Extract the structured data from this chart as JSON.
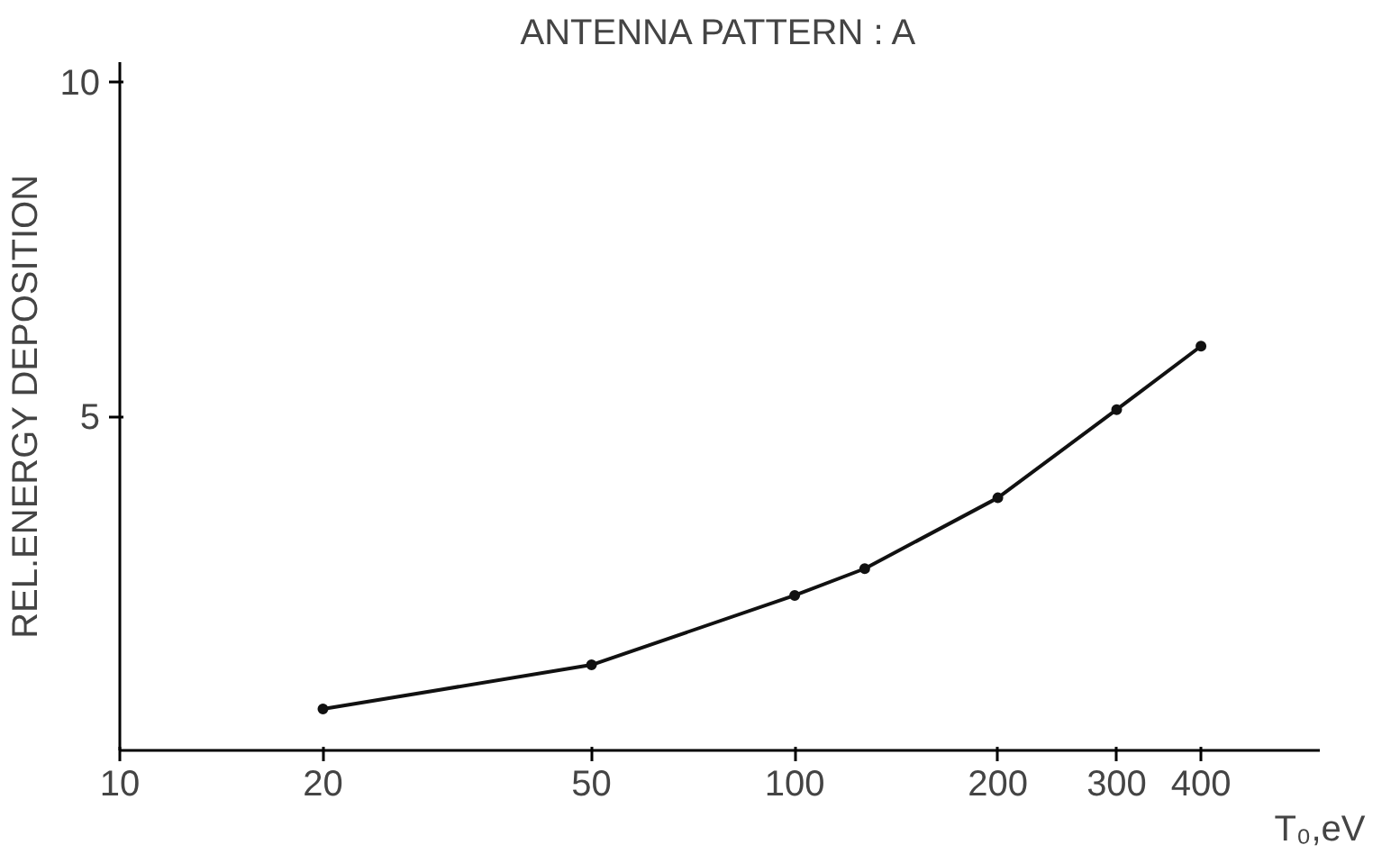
{
  "chart_data": {
    "type": "line",
    "title": "ANTENNA PATTERN : A",
    "xlabel": "T₀,eV",
    "ylabel": "REL.ENERGY DEPOSITION",
    "x": [
      20,
      50,
      100,
      127,
      200,
      300,
      400
    ],
    "series": [
      {
        "color": "#111111",
        "values": [
          0.62,
          1.28,
          2.32,
          2.72,
          3.78,
          5.1,
          6.05
        ]
      }
    ],
    "log": "x",
    "xlim": [
      10,
      600
    ],
    "xticks": [
      10,
      20,
      50,
      100,
      200,
      300,
      400
    ],
    "ylim": [
      0,
      10.3
    ],
    "yticks": [
      5,
      10
    ],
    "grid": false,
    "marker": "circle",
    "line_style": "solid"
  }
}
